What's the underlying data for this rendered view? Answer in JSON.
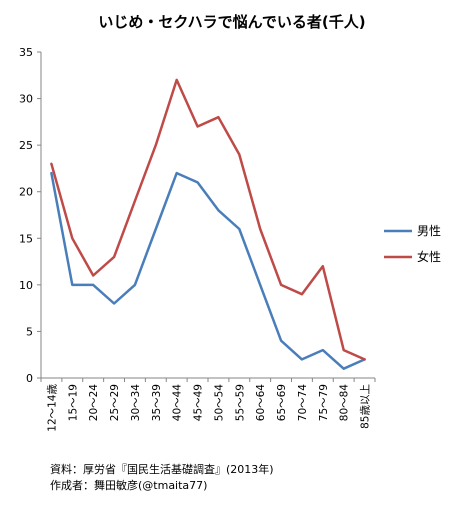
{
  "chart_data": {
    "type": "line",
    "title": "いじめ・セクハラで悩んでいる者(千人)",
    "categories": [
      "12～14歳",
      "15～19",
      "20～24",
      "25～29",
      "30～34",
      "35～39",
      "40～44",
      "45～49",
      "50～54",
      "55～59",
      "60～64",
      "65～69",
      "70～74",
      "75～79",
      "80～84",
      "85歳以上"
    ],
    "series": [
      {
        "name": "男性",
        "color": "#4a7ebb",
        "values": [
          22,
          10,
          10,
          8,
          10,
          16,
          22,
          21,
          18,
          16,
          10,
          4,
          2,
          3,
          1,
          2
        ]
      },
      {
        "name": "女性",
        "color": "#be4b48",
        "values": [
          23,
          15,
          11,
          13,
          19,
          25,
          32,
          27,
          28,
          24,
          16,
          10,
          9,
          12,
          3,
          2
        ]
      }
    ],
    "ylim": [
      0,
      35
    ],
    "yticks": [
      0,
      5,
      10,
      15,
      20,
      25,
      30,
      35
    ],
    "grid": false,
    "legend": "right"
  },
  "source": {
    "line1": "資料：厚労省『国民生活基礎調査』(2013年)",
    "line2": "作成者：舞田敏彦(@tmaita77)"
  }
}
